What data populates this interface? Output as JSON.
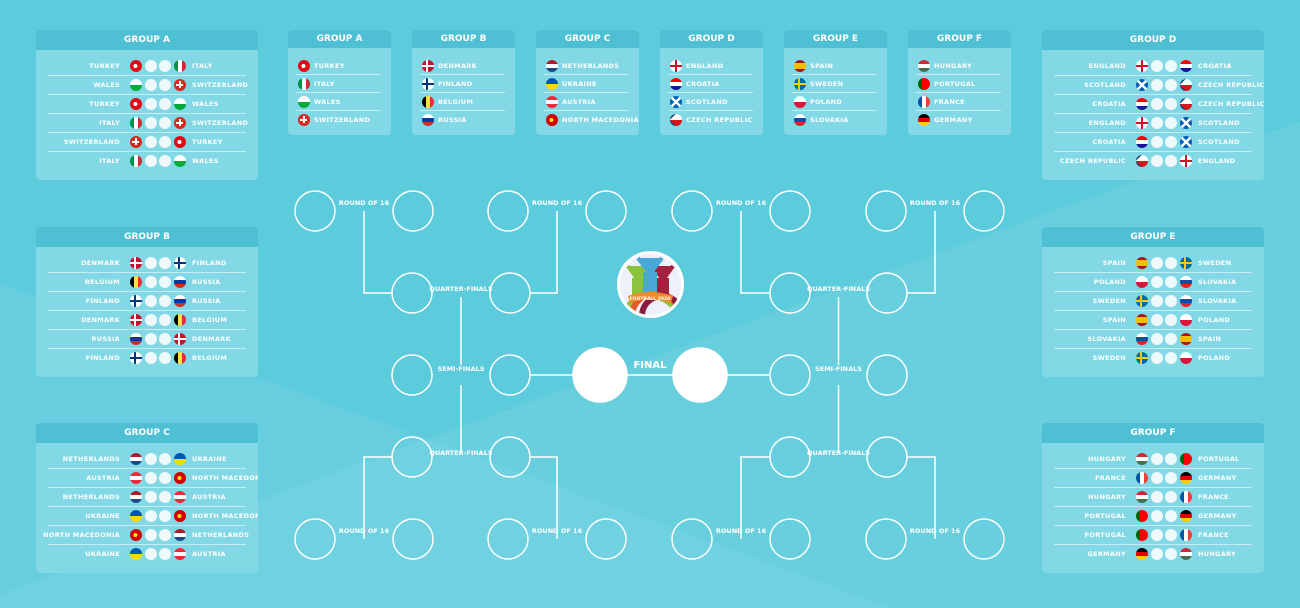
{
  "colors": {
    "background": "#5ccbdc",
    "panel": "#82d8e5",
    "panel_header": "#4fc0d4"
  },
  "flags": {
    "TURKEY": {
      "type": "dot",
      "c": [
        "#e30a17",
        "#ffffff"
      ]
    },
    "ITALY": {
      "type": "v",
      "c": [
        "#009246",
        "#ffffff",
        "#ce2b37"
      ]
    },
    "WALES": {
      "type": "h",
      "c": [
        "#ffffff",
        "#00ab39"
      ]
    },
    "SWITZERLAND": {
      "type": "cross",
      "c": [
        "#d52b1e",
        "#ffffff"
      ]
    },
    "DENMARK": {
      "type": "nordic",
      "c": [
        "#c8102e",
        "#ffffff"
      ]
    },
    "FINLAND": {
      "type": "nordic",
      "c": [
        "#ffffff",
        "#003580"
      ]
    },
    "BELGIUM": {
      "type": "v",
      "c": [
        "#000000",
        "#fae042",
        "#ed2939"
      ]
    },
    "RUSSIA": {
      "type": "h",
      "c": [
        "#ffffff",
        "#0039a6",
        "#d52b1e"
      ]
    },
    "NETHERLANDS": {
      "type": "h",
      "c": [
        "#ae1c28",
        "#ffffff",
        "#21468b"
      ]
    },
    "UKRAINE": {
      "type": "h",
      "c": [
        "#0057b7",
        "#ffd700"
      ]
    },
    "AUSTRIA": {
      "type": "h",
      "c": [
        "#ed2939",
        "#ffffff",
        "#ed2939"
      ]
    },
    "NORTH MACEDONIA": {
      "type": "dot",
      "c": [
        "#d20000",
        "#ffe600"
      ]
    },
    "ENGLAND": {
      "type": "fullcross",
      "c": [
        "#ffffff",
        "#ce1124"
      ]
    },
    "CROATIA": {
      "type": "h",
      "c": [
        "#ff0000",
        "#ffffff",
        "#171796"
      ]
    },
    "SCOTLAND": {
      "type": "saltire",
      "c": [
        "#005eb8",
        "#ffffff"
      ]
    },
    "CZECH REPUBLIC": {
      "type": "czech",
      "c": [
        "#ffffff",
        "#d7141a",
        "#11457e"
      ]
    },
    "SPAIN": {
      "type": "h",
      "c": [
        "#aa151b",
        "#f1bf00",
        "#f1bf00",
        "#aa151b"
      ]
    },
    "SWEDEN": {
      "type": "nordic",
      "c": [
        "#006aa7",
        "#fecc00"
      ]
    },
    "POLAND": {
      "type": "h",
      "c": [
        "#ffffff",
        "#dc143c"
      ]
    },
    "SLOVAKIA": {
      "type": "h",
      "c": [
        "#ffffff",
        "#0b4ea2",
        "#ee1c25"
      ]
    },
    "HUNGARY": {
      "type": "h",
      "c": [
        "#ce2939",
        "#ffffff",
        "#477050"
      ]
    },
    "PORTUGAL": {
      "type": "v",
      "c": [
        "#006600",
        "#ff0000",
        "#ff0000"
      ]
    },
    "FRANCE": {
      "type": "v",
      "c": [
        "#0055a4",
        "#ffffff",
        "#ef4135"
      ]
    },
    "GERMANY": {
      "type": "h",
      "c": [
        "#000000",
        "#dd0000",
        "#ffce00"
      ]
    }
  },
  "fixtures": [
    {
      "title": "GROUP A",
      "side": "left",
      "matches": [
        [
          "TURKEY",
          "ITALY"
        ],
        [
          "WALES",
          "SWITZERLAND"
        ],
        [
          "TURKEY",
          "WALES"
        ],
        [
          "ITALY",
          "SWITZERLAND"
        ],
        [
          "SWITZERLAND",
          "TURKEY"
        ],
        [
          "ITALY",
          "WALES"
        ]
      ]
    },
    {
      "title": "GROUP B",
      "side": "left",
      "matches": [
        [
          "DENMARK",
          "FINLAND"
        ],
        [
          "BELGIUM",
          "RUSSIA"
        ],
        [
          "FINLAND",
          "RUSSIA"
        ],
        [
          "DENMARK",
          "BELGIUM"
        ],
        [
          "RUSSIA",
          "DENMARK"
        ],
        [
          "FINLAND",
          "BELGIUM"
        ]
      ]
    },
    {
      "title": "GROUP C",
      "side": "left",
      "matches": [
        [
          "NETHERLANDS",
          "UKRAINE"
        ],
        [
          "AUSTRIA",
          "NORTH MACEDONIA"
        ],
        [
          "NETHERLANDS",
          "AUSTRIA"
        ],
        [
          "UKRAINE",
          "NORTH MACEDONIA"
        ],
        [
          "NORTH MACEDONIA",
          "NETHERLANDS"
        ],
        [
          "UKRAINE",
          "AUSTRIA"
        ]
      ]
    },
    {
      "title": "GROUP D",
      "side": "right",
      "matches": [
        [
          "ENGLAND",
          "CROATIA"
        ],
        [
          "SCOTLAND",
          "CZECH REPUBLIC"
        ],
        [
          "CROATIA",
          "CZECH REPUBLIC"
        ],
        [
          "ENGLAND",
          "SCOTLAND"
        ],
        [
          "CROATIA",
          "SCOTLAND"
        ],
        [
          "CZECH REPUBLIC",
          "ENGLAND"
        ]
      ]
    },
    {
      "title": "GROUP E",
      "side": "right",
      "matches": [
        [
          "SPAIN",
          "SWEDEN"
        ],
        [
          "POLAND",
          "SLOVAKIA"
        ],
        [
          "SWEDEN",
          "SLOVAKIA"
        ],
        [
          "SPAIN",
          "POLAND"
        ],
        [
          "SLOVAKIA",
          "SPAIN"
        ],
        [
          "SWEDEN",
          "POLAND"
        ]
      ]
    },
    {
      "title": "GROUP F",
      "side": "right",
      "matches": [
        [
          "HUNGARY",
          "PORTUGAL"
        ],
        [
          "FRANCE",
          "GERMANY"
        ],
        [
          "HUNGARY",
          "FRANCE"
        ],
        [
          "PORTUGAL",
          "GERMANY"
        ],
        [
          "PORTUGAL",
          "FRANCE"
        ],
        [
          "GERMANY",
          "HUNGARY"
        ]
      ]
    }
  ],
  "groups": [
    {
      "title": "GROUP A",
      "teams": [
        "TURKEY",
        "ITALY",
        "WALES",
        "SWITZERLAND"
      ]
    },
    {
      "title": "GROUP B",
      "teams": [
        "DENMARK",
        "FINLAND",
        "BELGIUM",
        "RUSSIA"
      ]
    },
    {
      "title": "GROUP C",
      "teams": [
        "NETHERLANDS",
        "UKRAINE",
        "AUSTRIA",
        "NORTH MACEDONIA"
      ]
    },
    {
      "title": "GROUP D",
      "teams": [
        "ENGLAND",
        "CROATIA",
        "SCOTLAND",
        "CZECH REPUBLIC"
      ]
    },
    {
      "title": "GROUP E",
      "teams": [
        "SPAIN",
        "SWEDEN",
        "POLAND",
        "SLOVAKIA"
      ]
    },
    {
      "title": "GROUP F",
      "teams": [
        "HUNGARY",
        "PORTUGAL",
        "FRANCE",
        "GERMANY"
      ]
    }
  ],
  "bracket": {
    "round_of_16": "ROUND OF 16",
    "quarter_finals": "QUARTER-FINALS",
    "semi_finals": "SEMI-FINALS",
    "final": "FINAL"
  },
  "logo": {
    "text": "FOOTBALL 2020"
  }
}
